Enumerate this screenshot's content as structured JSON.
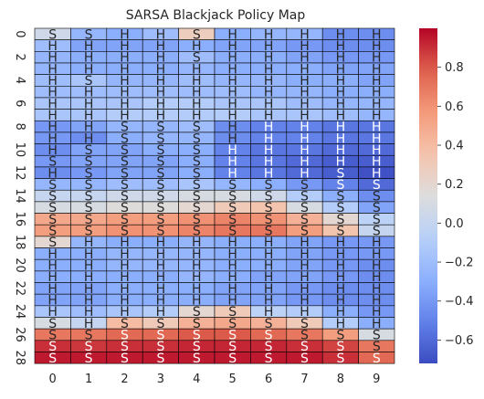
{
  "chart_data": {
    "type": "heatmap",
    "title": "SARSA Blackjack Policy Map",
    "rows": 29,
    "cols": 10,
    "y_tick_labels": [
      "0",
      "2",
      "4",
      "6",
      "8",
      "10",
      "12",
      "14",
      "16",
      "18",
      "20",
      "22",
      "24",
      "26",
      "28"
    ],
    "y_tick_rows": [
      0,
      2,
      4,
      6,
      8,
      10,
      12,
      14,
      16,
      18,
      20,
      22,
      24,
      26,
      28
    ],
    "x_tick_labels": [
      "0",
      "1",
      "2",
      "3",
      "4",
      "5",
      "6",
      "7",
      "8",
      "9"
    ],
    "vmin": -0.72,
    "vmax": 1.0,
    "colorbar_ticks": [
      0.8,
      0.6,
      0.4,
      0.2,
      0.0,
      -0.2,
      -0.4,
      -0.6
    ],
    "colorbar_tick_labels": [
      "0.8",
      "0.6",
      "0.4",
      "0.2",
      "0.0",
      "−0.2",
      "−0.4",
      "−0.6"
    ],
    "actions": [
      [
        "S",
        "S",
        "H",
        "H",
        "S",
        "H",
        "H",
        "H",
        "H",
        "H"
      ],
      [
        "H",
        "H",
        "H",
        "H",
        "H",
        "H",
        "H",
        "H",
        "H",
        "H"
      ],
      [
        "H",
        "H",
        "H",
        "H",
        "S",
        "H",
        "H",
        "H",
        "H",
        "H"
      ],
      [
        "H",
        "H",
        "H",
        "H",
        "H",
        "H",
        "H",
        "H",
        "H",
        "H"
      ],
      [
        "H",
        "S",
        "H",
        "H",
        "H",
        "H",
        "H",
        "H",
        "H",
        "H"
      ],
      [
        "H",
        "H",
        "H",
        "H",
        "H",
        "H",
        "H",
        "H",
        "H",
        "H"
      ],
      [
        "H",
        "H",
        "H",
        "H",
        "H",
        "H",
        "H",
        "H",
        "H",
        "H"
      ],
      [
        "H",
        "H",
        "H",
        "H",
        "H",
        "H",
        "H",
        "H",
        "H",
        "H"
      ],
      [
        "H",
        "H",
        "S",
        "S",
        "S",
        "H",
        "H",
        "H",
        "H",
        "H"
      ],
      [
        "H",
        "H",
        "S",
        "S",
        "S",
        "H",
        "H",
        "H",
        "H",
        "H"
      ],
      [
        "H",
        "S",
        "S",
        "S",
        "S",
        "H",
        "H",
        "H",
        "H",
        "H"
      ],
      [
        "S",
        "S",
        "S",
        "S",
        "S",
        "H",
        "H",
        "H",
        "H",
        "H"
      ],
      [
        "H",
        "S",
        "S",
        "S",
        "S",
        "H",
        "H",
        "H",
        "S",
        "H"
      ],
      [
        "S",
        "S",
        "S",
        "S",
        "S",
        "S",
        "S",
        "S",
        "S",
        "S"
      ],
      [
        "S",
        "S",
        "S",
        "S",
        "S",
        "S",
        "S",
        "S",
        "S",
        "S"
      ],
      [
        "S",
        "S",
        "S",
        "S",
        "S",
        "S",
        "S",
        "S",
        "S",
        "S"
      ],
      [
        "S",
        "S",
        "S",
        "S",
        "S",
        "S",
        "S",
        "S",
        "S",
        "S"
      ],
      [
        "S",
        "S",
        "S",
        "S",
        "S",
        "S",
        "S",
        "S",
        "S",
        "S"
      ],
      [
        "S",
        "H",
        "H",
        "H",
        "H",
        "H",
        "H",
        "H",
        "H",
        "H"
      ],
      [
        "H",
        "H",
        "H",
        "H",
        "H",
        "H",
        "H",
        "H",
        "H",
        "H"
      ],
      [
        "H",
        "H",
        "H",
        "H",
        "H",
        "H",
        "H",
        "H",
        "H",
        "H"
      ],
      [
        "H",
        "H",
        "H",
        "H",
        "H",
        "H",
        "H",
        "H",
        "H",
        "H"
      ],
      [
        "H",
        "H",
        "H",
        "H",
        "H",
        "H",
        "H",
        "H",
        "H",
        "H"
      ],
      [
        "H",
        "H",
        "H",
        "H",
        "H",
        "H",
        "H",
        "H",
        "H",
        "H"
      ],
      [
        "H",
        "H",
        "H",
        "H",
        "S",
        "S",
        "H",
        "H",
        "H",
        "H"
      ],
      [
        "S",
        "H",
        "S",
        "S",
        "S",
        "S",
        "S",
        "S",
        "H",
        "H"
      ],
      [
        "S",
        "S",
        "S",
        "S",
        "S",
        "S",
        "S",
        "S",
        "S",
        "S"
      ],
      [
        "S",
        "S",
        "S",
        "S",
        "S",
        "S",
        "S",
        "S",
        "S",
        "S"
      ],
      [
        "S",
        "S",
        "S",
        "S",
        "S",
        "S",
        "S",
        "S",
        "S",
        "S"
      ]
    ],
    "values": [
      [
        0.05,
        -0.25,
        -0.3,
        -0.2,
        0.28,
        -0.3,
        -0.25,
        -0.25,
        -0.45,
        -0.45
      ],
      [
        -0.2,
        -0.35,
        -0.35,
        -0.35,
        -0.3,
        -0.35,
        -0.35,
        -0.4,
        -0.45,
        -0.45
      ],
      [
        -0.25,
        -0.3,
        -0.3,
        -0.3,
        -0.2,
        -0.3,
        -0.3,
        -0.35,
        -0.4,
        -0.4
      ],
      [
        -0.25,
        -0.3,
        -0.3,
        -0.3,
        -0.25,
        -0.3,
        -0.3,
        -0.3,
        -0.35,
        -0.35
      ],
      [
        -0.2,
        -0.15,
        -0.25,
        -0.25,
        -0.2,
        -0.25,
        -0.25,
        -0.3,
        -0.3,
        -0.35
      ],
      [
        -0.2,
        -0.2,
        -0.2,
        -0.2,
        -0.2,
        -0.2,
        -0.25,
        -0.25,
        -0.3,
        -0.3
      ],
      [
        -0.15,
        -0.15,
        -0.15,
        -0.1,
        -0.1,
        -0.15,
        -0.15,
        -0.2,
        -0.25,
        -0.25
      ],
      [
        -0.15,
        -0.15,
        -0.1,
        -0.1,
        -0.1,
        -0.1,
        -0.15,
        -0.15,
        -0.2,
        -0.25
      ],
      [
        -0.4,
        -0.35,
        -0.25,
        -0.25,
        -0.2,
        -0.45,
        -0.5,
        -0.5,
        -0.55,
        -0.55
      ],
      [
        -0.4,
        -0.45,
        -0.3,
        -0.25,
        -0.25,
        -0.45,
        -0.5,
        -0.5,
        -0.55,
        -0.55
      ],
      [
        -0.45,
        -0.35,
        -0.35,
        -0.3,
        -0.3,
        -0.5,
        -0.55,
        -0.55,
        -0.6,
        -0.6
      ],
      [
        -0.4,
        -0.35,
        -0.35,
        -0.35,
        -0.3,
        -0.5,
        -0.55,
        -0.6,
        -0.65,
        -0.65
      ],
      [
        -0.45,
        -0.4,
        -0.35,
        -0.35,
        -0.3,
        -0.5,
        -0.55,
        -0.6,
        -0.65,
        -0.7
      ],
      [
        -0.25,
        -0.25,
        -0.2,
        -0.2,
        -0.15,
        -0.25,
        -0.3,
        -0.4,
        -0.5,
        -0.6
      ],
      [
        0.0,
        0.0,
        0.05,
        0.05,
        0.1,
        0.1,
        0.05,
        -0.1,
        -0.3,
        -0.45
      ],
      [
        0.1,
        0.1,
        0.15,
        0.15,
        0.2,
        0.3,
        0.35,
        0.1,
        -0.1,
        -0.35
      ],
      [
        0.5,
        0.5,
        0.55,
        0.55,
        0.6,
        0.65,
        0.6,
        0.45,
        0.2,
        -0.05
      ],
      [
        0.55,
        0.55,
        0.6,
        0.6,
        0.65,
        0.7,
        0.7,
        0.55,
        0.35,
        0.0
      ],
      [
        0.2,
        -0.25,
        -0.3,
        -0.3,
        -0.25,
        -0.3,
        -0.3,
        -0.35,
        -0.4,
        -0.4
      ],
      [
        -0.3,
        -0.3,
        -0.25,
        -0.25,
        -0.25,
        -0.3,
        -0.3,
        -0.35,
        -0.4,
        -0.4
      ],
      [
        -0.3,
        -0.3,
        -0.25,
        -0.25,
        -0.25,
        -0.3,
        -0.3,
        -0.35,
        -0.4,
        -0.45
      ],
      [
        -0.3,
        -0.3,
        -0.3,
        -0.3,
        -0.25,
        -0.3,
        -0.35,
        -0.35,
        -0.4,
        -0.45
      ],
      [
        -0.35,
        -0.35,
        -0.3,
        -0.3,
        -0.3,
        -0.35,
        -0.35,
        -0.4,
        -0.45,
        -0.45
      ],
      [
        -0.35,
        -0.35,
        -0.3,
        -0.3,
        -0.3,
        -0.35,
        -0.35,
        -0.4,
        -0.45,
        -0.45
      ],
      [
        -0.15,
        -0.2,
        -0.15,
        -0.1,
        0.2,
        0.3,
        -0.05,
        -0.1,
        -0.3,
        -0.4
      ],
      [
        0.1,
        0.0,
        0.4,
        0.3,
        0.45,
        0.5,
        0.45,
        0.3,
        -0.1,
        -0.3
      ],
      [
        0.7,
        0.7,
        0.75,
        0.75,
        0.8,
        0.8,
        0.75,
        0.7,
        0.55,
        0.1
      ],
      [
        0.9,
        0.88,
        0.9,
        0.9,
        0.92,
        0.92,
        0.92,
        0.9,
        0.85,
        0.7
      ],
      [
        0.95,
        0.95,
        0.95,
        0.95,
        0.95,
        0.95,
        0.95,
        0.95,
        0.9,
        0.75
      ]
    ]
  }
}
